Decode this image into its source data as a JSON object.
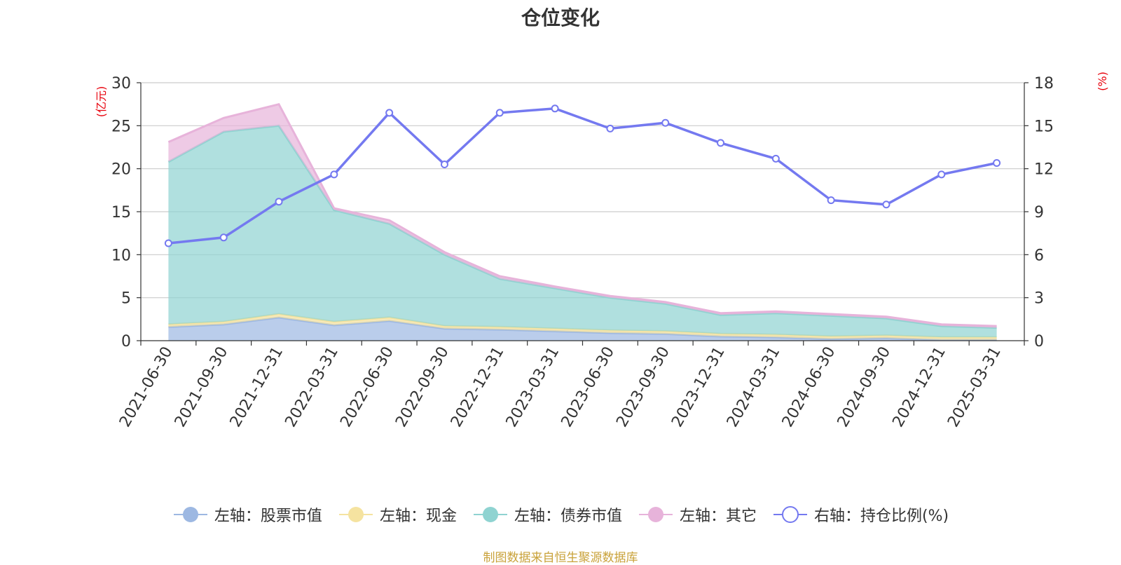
{
  "chart_data": {
    "type": "area",
    "title": "仓位变化",
    "x": [
      "2021-06-30",
      "2021-09-30",
      "2021-12-31",
      "2022-03-31",
      "2022-06-30",
      "2022-09-30",
      "2022-12-31",
      "2023-03-31",
      "2023-06-30",
      "2023-09-30",
      "2023-12-31",
      "2024-03-31",
      "2024-06-30",
      "2024-09-30",
      "2024-12-31",
      "2025-03-31"
    ],
    "left_axis": {
      "unit": "(亿元)",
      "ylim": [
        0,
        30
      ],
      "ticks": [
        0,
        5,
        10,
        15,
        20,
        25,
        30
      ]
    },
    "right_axis": {
      "unit": "(%)",
      "ylim": [
        0,
        18
      ],
      "ticks": [
        0,
        3,
        6,
        9,
        12,
        15,
        18
      ]
    },
    "stacked": true,
    "series": [
      {
        "name": "左轴：股票市值",
        "axis": "left",
        "color": "#9db8e2",
        "values": [
          1.6,
          1.9,
          2.7,
          1.8,
          2.3,
          1.4,
          1.3,
          1.1,
          0.9,
          0.8,
          0.5,
          0.4,
          0.2,
          0.3,
          0.1,
          0.1
        ]
      },
      {
        "name": "左轴：现金",
        "axis": "left",
        "color": "#f5e3a0",
        "values": [
          0.3,
          0.3,
          0.4,
          0.4,
          0.4,
          0.3,
          0.3,
          0.3,
          0.3,
          0.3,
          0.3,
          0.3,
          0.3,
          0.3,
          0.3,
          0.3
        ]
      },
      {
        "name": "左轴：债券市值",
        "axis": "left",
        "color": "#8fd3d1",
        "values": [
          18.9,
          22.1,
          21.9,
          13.0,
          10.9,
          8.3,
          5.6,
          4.7,
          3.8,
          3.2,
          2.2,
          2.5,
          2.4,
          2.0,
          1.3,
          1.1
        ]
      },
      {
        "name": "左轴：其它",
        "axis": "left",
        "color": "#e7b3da",
        "values": [
          2.3,
          1.6,
          2.5,
          0.2,
          0.4,
          0.3,
          0.3,
          0.2,
          0.2,
          0.2,
          0.2,
          0.2,
          0.2,
          0.2,
          0.2,
          0.2
        ]
      },
      {
        "name": "右轴：持仓比例(%)",
        "axis": "right",
        "color": "#7479f0",
        "values": [
          6.8,
          7.2,
          9.7,
          11.6,
          15.9,
          12.3,
          15.9,
          16.2,
          14.8,
          15.2,
          13.8,
          12.7,
          9.8,
          9.5,
          11.6,
          12.4
        ]
      }
    ],
    "grid": true,
    "legend_position": "bottom"
  },
  "source_note": "制图数据来自恒生聚源数据库"
}
